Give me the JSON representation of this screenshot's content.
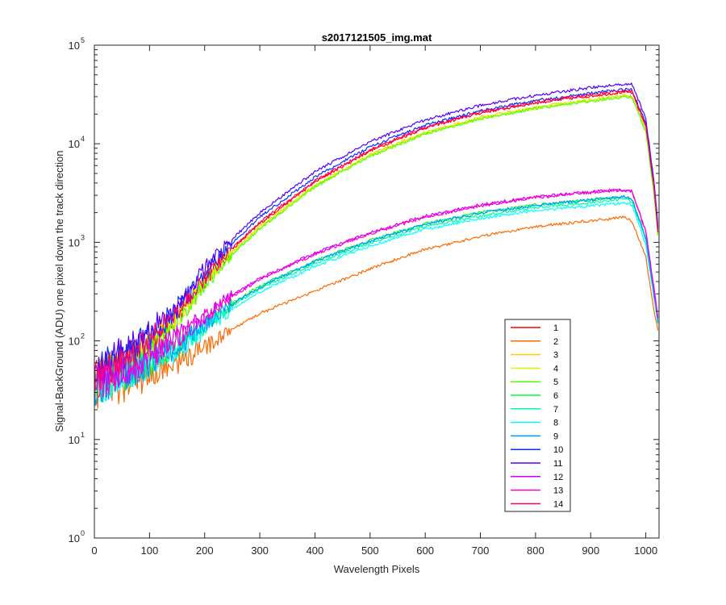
{
  "chart_data": {
    "type": "line",
    "title": "s2017121505_img.mat",
    "xlabel": "Wavelength Pixels",
    "ylabel": "Signal-BackGround (ADU) one pixel down the track direction",
    "xlim": [
      0,
      1024
    ],
    "ylim": [
      1,
      100000
    ],
    "yscale": "log",
    "grid": false,
    "legend_position": "bottom-right",
    "x_ticks": [
      0,
      100,
      200,
      300,
      400,
      500,
      600,
      700,
      800,
      900,
      1000
    ],
    "y_ticks": [
      {
        "value": 1,
        "base": "10",
        "exp": "0"
      },
      {
        "value": 10,
        "base": "10",
        "exp": "1"
      },
      {
        "value": 100,
        "base": "10",
        "exp": "2"
      },
      {
        "value": 1000,
        "base": "10",
        "exp": "3"
      },
      {
        "value": 10000,
        "base": "10",
        "exp": "4"
      },
      {
        "value": 100000,
        "base": "10",
        "exp": "5"
      }
    ],
    "x": [
      0,
      50,
      100,
      150,
      200,
      250,
      300,
      400,
      500,
      600,
      700,
      800,
      900,
      960,
      975,
      1000,
      1015,
      1024
    ],
    "series": [
      {
        "name": "1",
        "color": "#ff0000",
        "values": [
          40,
          60,
          95,
          180,
          420,
          850,
          1550,
          4100,
          8500,
          14500,
          20500,
          26000,
          30500,
          33500,
          33000,
          15000,
          3500,
          950
        ]
      },
      {
        "name": "2",
        "color": "#ff6a00",
        "values": [
          30,
          35,
          45,
          60,
          85,
          130,
          190,
          320,
          540,
          850,
          1150,
          1450,
          1650,
          1800,
          1650,
          700,
          200,
          110
        ]
      },
      {
        "name": "3",
        "color": "#ffcc00",
        "values": [
          40,
          55,
          90,
          170,
          400,
          800,
          1450,
          3800,
          7800,
          13000,
          18500,
          23500,
          28000,
          31000,
          30500,
          14000,
          3300,
          900
        ]
      },
      {
        "name": "4",
        "color": "#ccff00",
        "values": [
          40,
          55,
          85,
          165,
          390,
          780,
          1400,
          3700,
          7600,
          12800,
          18000,
          23000,
          27500,
          30500,
          30000,
          13500,
          3200,
          900
        ]
      },
      {
        "name": "5",
        "color": "#55ff00",
        "values": [
          40,
          55,
          85,
          160,
          380,
          760,
          1380,
          3650,
          7500,
          12600,
          17800,
          22800,
          27000,
          30000,
          29500,
          13300,
          3100,
          880
        ]
      },
      {
        "name": "6",
        "color": "#00ff33",
        "values": [
          35,
          45,
          60,
          90,
          150,
          240,
          360,
          650,
          1050,
          1550,
          2000,
          2400,
          2700,
          2900,
          2750,
          1100,
          300,
          130
        ]
      },
      {
        "name": "7",
        "color": "#00ff99",
        "values": [
          35,
          45,
          58,
          85,
          140,
          225,
          340,
          610,
          980,
          1450,
          1850,
          2250,
          2550,
          2750,
          2600,
          1050,
          290,
          125
        ]
      },
      {
        "name": "8",
        "color": "#00ffff",
        "values": [
          35,
          45,
          55,
          80,
          130,
          210,
          315,
          570,
          920,
          1350,
          1750,
          2100,
          2350,
          2500,
          2400,
          950,
          270,
          120
        ]
      },
      {
        "name": "9",
        "color": "#0099ff",
        "values": [
          35,
          45,
          60,
          88,
          145,
          235,
          350,
          640,
          1030,
          1520,
          1980,
          2380,
          2700,
          2900,
          2800,
          1100,
          300,
          130
        ]
      },
      {
        "name": "10",
        "color": "#0033ff",
        "values": [
          45,
          70,
          110,
          210,
          480,
          980,
          1800,
          4600,
          9300,
          15500,
          21500,
          27500,
          32500,
          35500,
          35000,
          16000,
          3700,
          1000
        ]
      },
      {
        "name": "11",
        "color": "#5500ff",
        "values": [
          45,
          75,
          120,
          230,
          530,
          1080,
          2000,
          5200,
          10500,
          17500,
          24500,
          31000,
          37000,
          40500,
          40000,
          18000,
          4100,
          1100
        ]
      },
      {
        "name": "12",
        "color": "#cc00ff",
        "values": [
          35,
          50,
          70,
          110,
          180,
          290,
          430,
          780,
          1250,
          1850,
          2400,
          2900,
          3250,
          3450,
          3300,
          1300,
          340,
          140
        ]
      },
      {
        "name": "13",
        "color": "#ff00cc",
        "values": [
          35,
          50,
          68,
          105,
          175,
          280,
          420,
          760,
          1220,
          1800,
          2350,
          2850,
          3200,
          3400,
          3250,
          1280,
          330,
          140
        ]
      },
      {
        "name": "14",
        "color": "#ff0066",
        "values": [
          40,
          60,
          100,
          185,
          430,
          870,
          1600,
          4200,
          8700,
          14800,
          21000,
          26500,
          31500,
          34500,
          34000,
          15500,
          3600,
          960
        ]
      }
    ]
  }
}
